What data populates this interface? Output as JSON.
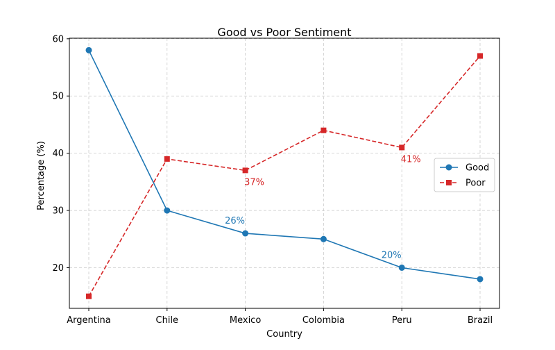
{
  "chart_data": {
    "type": "line",
    "title": "Good vs Poor Sentiment",
    "xlabel": "Country",
    "ylabel": "Percentage (%)",
    "categories": [
      "Argentina",
      "Chile",
      "Mexico",
      "Colombia",
      "Peru",
      "Brazil"
    ],
    "ylim": [
      12.9,
      60.1
    ],
    "yticks": [
      20,
      30,
      40,
      50,
      60
    ],
    "grid": true,
    "legend_position": "center-right",
    "series": [
      {
        "name": "Good",
        "values": [
          58,
          30,
          26,
          25,
          20,
          18
        ],
        "color": "#1f77b4",
        "line_style": "solid",
        "marker": "circle"
      },
      {
        "name": "Poor",
        "values": [
          15,
          39,
          37,
          44,
          41,
          57
        ],
        "color": "#d62728",
        "line_style": "dashed",
        "marker": "square"
      }
    ],
    "annotations": [
      {
        "series": "Good",
        "category": "Mexico",
        "text": "26%",
        "placement": "above-left"
      },
      {
        "series": "Good",
        "category": "Peru",
        "text": "20%",
        "placement": "above-left"
      },
      {
        "series": "Poor",
        "category": "Mexico",
        "text": "37%",
        "placement": "below-right"
      },
      {
        "series": "Poor",
        "category": "Peru",
        "text": "41%",
        "placement": "below-right"
      }
    ]
  }
}
